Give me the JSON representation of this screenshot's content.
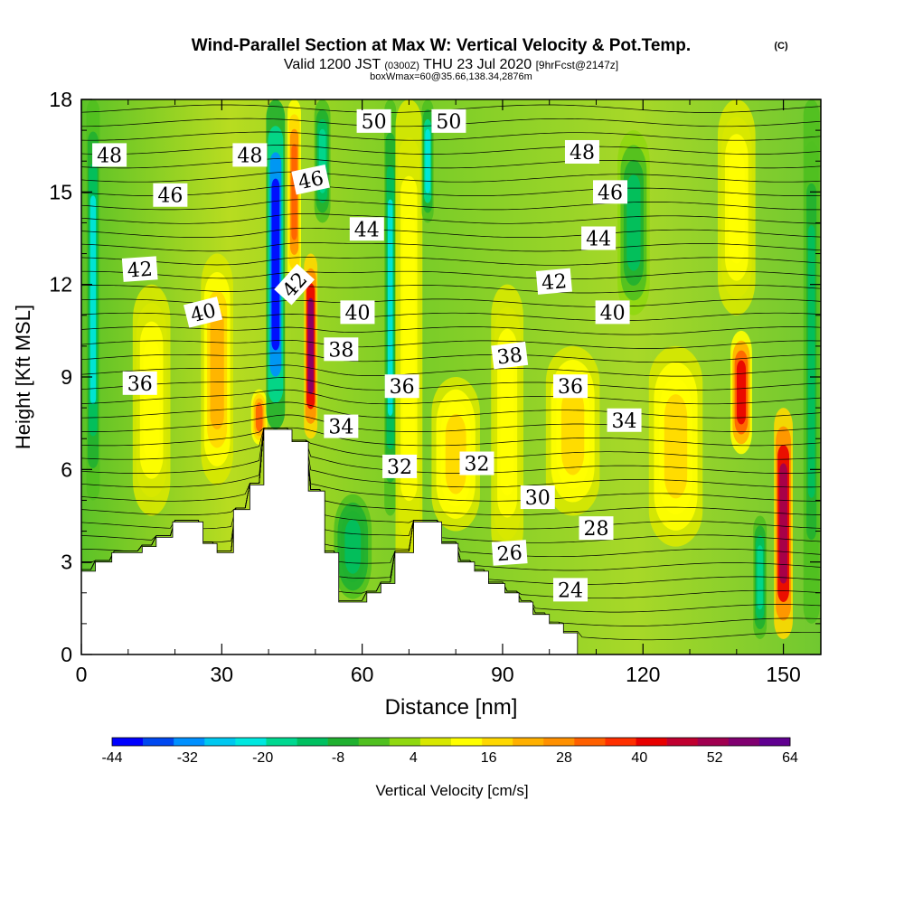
{
  "header": {
    "title": "Wind-Parallel Section at Max W: Vertical Velocity & Pot.Temp.",
    "copyright": "(C)",
    "valid_prefix": "Valid 1200 JST",
    "valid_utc": "(0300Z)",
    "valid_date": "THU 23 Jul 2020",
    "forecast": "[9hrFcst@2147z]",
    "box_info": "boxWmax=60@35.66,138.34,2876m"
  },
  "chart_data": {
    "type": "heatmap",
    "xlabel": "Distance [nm]",
    "ylabel": "Height [Kft MSL]",
    "xlim": [
      0,
      158
    ],
    "ylim": [
      0,
      18
    ],
    "x_ticks": [
      0,
      30,
      60,
      90,
      120,
      150
    ],
    "y_ticks": [
      0,
      3,
      6,
      9,
      12,
      15,
      18
    ],
    "colorbar": {
      "label": "Vertical Velocity [cm/s]",
      "min": -44,
      "max": 64,
      "tick_labels": [
        "-44",
        "-32",
        "-20",
        "-8",
        "4",
        "16",
        "28",
        "40",
        "52",
        "64"
      ],
      "colors": [
        "#0000ff",
        "#0048f0",
        "#0090ff",
        "#00c8f0",
        "#00e8e0",
        "#00d890",
        "#00c060",
        "#20b030",
        "#50c020",
        "#90d810",
        "#d8e800",
        "#ffff00",
        "#ffd800",
        "#ffb000",
        "#ff9000",
        "#ff6000",
        "#ff3000",
        "#e80000",
        "#c00030",
        "#a00050",
        "#800070",
        "#600090"
      ]
    },
    "terrain": [
      [
        0,
        2.7
      ],
      [
        3,
        2.7
      ],
      [
        3,
        3.0
      ],
      [
        6.5,
        3.0
      ],
      [
        6.5,
        3.3
      ],
      [
        13,
        3.3
      ],
      [
        13,
        3.5
      ],
      [
        16,
        3.5
      ],
      [
        16,
        3.8
      ],
      [
        19.5,
        3.8
      ],
      [
        19.5,
        4.3
      ],
      [
        26,
        4.3
      ],
      [
        26,
        3.6
      ],
      [
        29,
        3.6
      ],
      [
        29,
        3.3
      ],
      [
        32.5,
        3.3
      ],
      [
        32.5,
        4.7
      ],
      [
        36,
        4.7
      ],
      [
        36,
        5.5
      ],
      [
        39,
        5.5
      ],
      [
        39,
        7.3
      ],
      [
        45,
        7.3
      ],
      [
        45,
        6.9
      ],
      [
        48.5,
        6.9
      ],
      [
        48.5,
        5.3
      ],
      [
        52,
        5.3
      ],
      [
        52,
        3.3
      ],
      [
        55,
        3.3
      ],
      [
        55,
        1.7
      ],
      [
        61,
        1.7
      ],
      [
        61,
        2.0
      ],
      [
        64,
        2.0
      ],
      [
        64,
        2.3
      ],
      [
        67,
        2.3
      ],
      [
        67,
        3.3
      ],
      [
        71,
        3.3
      ],
      [
        71,
        4.3
      ],
      [
        77,
        4.3
      ],
      [
        77,
        3.6
      ],
      [
        80.5,
        3.6
      ],
      [
        80.5,
        3.0
      ],
      [
        84,
        3.0
      ],
      [
        84,
        2.7
      ],
      [
        87,
        2.7
      ],
      [
        87,
        2.3
      ],
      [
        90.5,
        2.3
      ],
      [
        90.5,
        2.0
      ],
      [
        93.5,
        2.0
      ],
      [
        93.5,
        1.7
      ],
      [
        96.5,
        1.7
      ],
      [
        96.5,
        1.3
      ],
      [
        100,
        1.3
      ],
      [
        100,
        1.0
      ],
      [
        103,
        1.0
      ],
      [
        103,
        0.7
      ],
      [
        106,
        0.7
      ],
      [
        106,
        0
      ]
    ],
    "velocity_features": [
      {
        "x": 2.5,
        "y0": 5,
        "y1": 18,
        "w": -20,
        "width": 2.5
      },
      {
        "x": 15,
        "y0": 4.5,
        "y1": 12,
        "w": 14,
        "width": 7
      },
      {
        "x": 29,
        "y0": 5.5,
        "y1": 13,
        "w": 20,
        "width": 6
      },
      {
        "x": 38,
        "y0": 6.8,
        "y1": 8.6,
        "w": 30,
        "width": 3
      },
      {
        "x": 41.5,
        "y0": 7.3,
        "y1": 18,
        "w": -42,
        "width": 3.5
      },
      {
        "x": 45.5,
        "y0": 12,
        "y1": 18,
        "w": 32,
        "width": 2.5
      },
      {
        "x": 49,
        "y0": 7.0,
        "y1": 13,
        "w": 55,
        "width": 2.5
      },
      {
        "x": 51.5,
        "y0": 14,
        "y1": 18,
        "w": -18,
        "width": 3
      },
      {
        "x": 58,
        "y0": 1.8,
        "y1": 5.2,
        "w": -14,
        "width": 7
      },
      {
        "x": 66,
        "y0": 4.5,
        "y1": 18,
        "w": -20,
        "width": 2.2
      },
      {
        "x": 70,
        "y0": 2.5,
        "y1": 18,
        "w": 14,
        "width": 5
      },
      {
        "x": 74,
        "y0": 14,
        "y1": 18,
        "w": -22,
        "width": 2.2
      },
      {
        "x": 80,
        "y0": 4,
        "y1": 9,
        "w": 16,
        "width": 9
      },
      {
        "x": 91,
        "y0": 3,
        "y1": 12,
        "w": 14,
        "width": 6
      },
      {
        "x": 105,
        "y0": 4.5,
        "y1": 10,
        "w": 16,
        "width": 10
      },
      {
        "x": 127,
        "y0": 3.5,
        "y1": 10,
        "w": 18,
        "width": 10
      },
      {
        "x": 118,
        "y0": 11,
        "y1": 17,
        "w": -10,
        "width": 6
      },
      {
        "x": 141,
        "y0": 6.5,
        "y1": 10.5,
        "w": 44,
        "width": 4
      },
      {
        "x": 150,
        "y0": 0.5,
        "y1": 8,
        "w": 52,
        "width": 3.5
      },
      {
        "x": 145,
        "y0": 0.5,
        "y1": 4.5,
        "w": -16,
        "width": 2.5
      },
      {
        "x": 156,
        "y0": 1,
        "y1": 18,
        "w": -12,
        "width": 3
      },
      {
        "x": 140,
        "y0": 11,
        "y1": 18,
        "w": 14,
        "width": 7
      }
    ],
    "theta_labels": [
      {
        "text": "48",
        "x": 6,
        "y": 16.2,
        "rot": 0
      },
      {
        "text": "48",
        "x": 36,
        "y": 16.2,
        "rot": 0
      },
      {
        "text": "46",
        "x": 19,
        "y": 14.9,
        "rot": 0
      },
      {
        "text": "46",
        "x": 49,
        "y": 15.4,
        "rot": -12
      },
      {
        "text": "44",
        "x": 61,
        "y": 13.8,
        "rot": 0
      },
      {
        "text": "42",
        "x": 12.5,
        "y": 12.5,
        "rot": -4
      },
      {
        "text": "42",
        "x": 45.5,
        "y": 12.0,
        "rot": -48
      },
      {
        "text": "40",
        "x": 26,
        "y": 11.1,
        "rot": -14
      },
      {
        "text": "40",
        "x": 59,
        "y": 11.1,
        "rot": 0
      },
      {
        "text": "38",
        "x": 55.5,
        "y": 9.9,
        "rot": 0
      },
      {
        "text": "36",
        "x": 12.5,
        "y": 8.8,
        "rot": 0
      },
      {
        "text": "36",
        "x": 68.5,
        "y": 8.7,
        "rot": 0
      },
      {
        "text": "34",
        "x": 55.5,
        "y": 7.4,
        "rot": 0
      },
      {
        "text": "32",
        "x": 68,
        "y": 6.1,
        "rot": 0
      },
      {
        "text": "32",
        "x": 84.5,
        "y": 6.2,
        "rot": 0
      },
      {
        "text": "30",
        "x": 97.5,
        "y": 5.1,
        "rot": 0
      },
      {
        "text": "28",
        "x": 110,
        "y": 4.1,
        "rot": 0
      },
      {
        "text": "26",
        "x": 91.5,
        "y": 3.3,
        "rot": -4
      },
      {
        "text": "24",
        "x": 104.5,
        "y": 2.1,
        "rot": 0
      },
      {
        "text": "50",
        "x": 62.5,
        "y": 17.3,
        "rot": 0
      },
      {
        "text": "50",
        "x": 78.5,
        "y": 17.3,
        "rot": 0
      },
      {
        "text": "48",
        "x": 107,
        "y": 16.3,
        "rot": 0
      },
      {
        "text": "46",
        "x": 113,
        "y": 15.0,
        "rot": 0
      },
      {
        "text": "44",
        "x": 110.5,
        "y": 13.5,
        "rot": 0
      },
      {
        "text": "42",
        "x": 101,
        "y": 12.1,
        "rot": -5
      },
      {
        "text": "40",
        "x": 113.5,
        "y": 11.1,
        "rot": 0
      },
      {
        "text": "38",
        "x": 91.5,
        "y": 9.7,
        "rot": -7
      },
      {
        "text": "36",
        "x": 104.5,
        "y": 8.7,
        "rot": 0
      },
      {
        "text": "34",
        "x": 116,
        "y": 7.6,
        "rot": 0
      }
    ]
  }
}
